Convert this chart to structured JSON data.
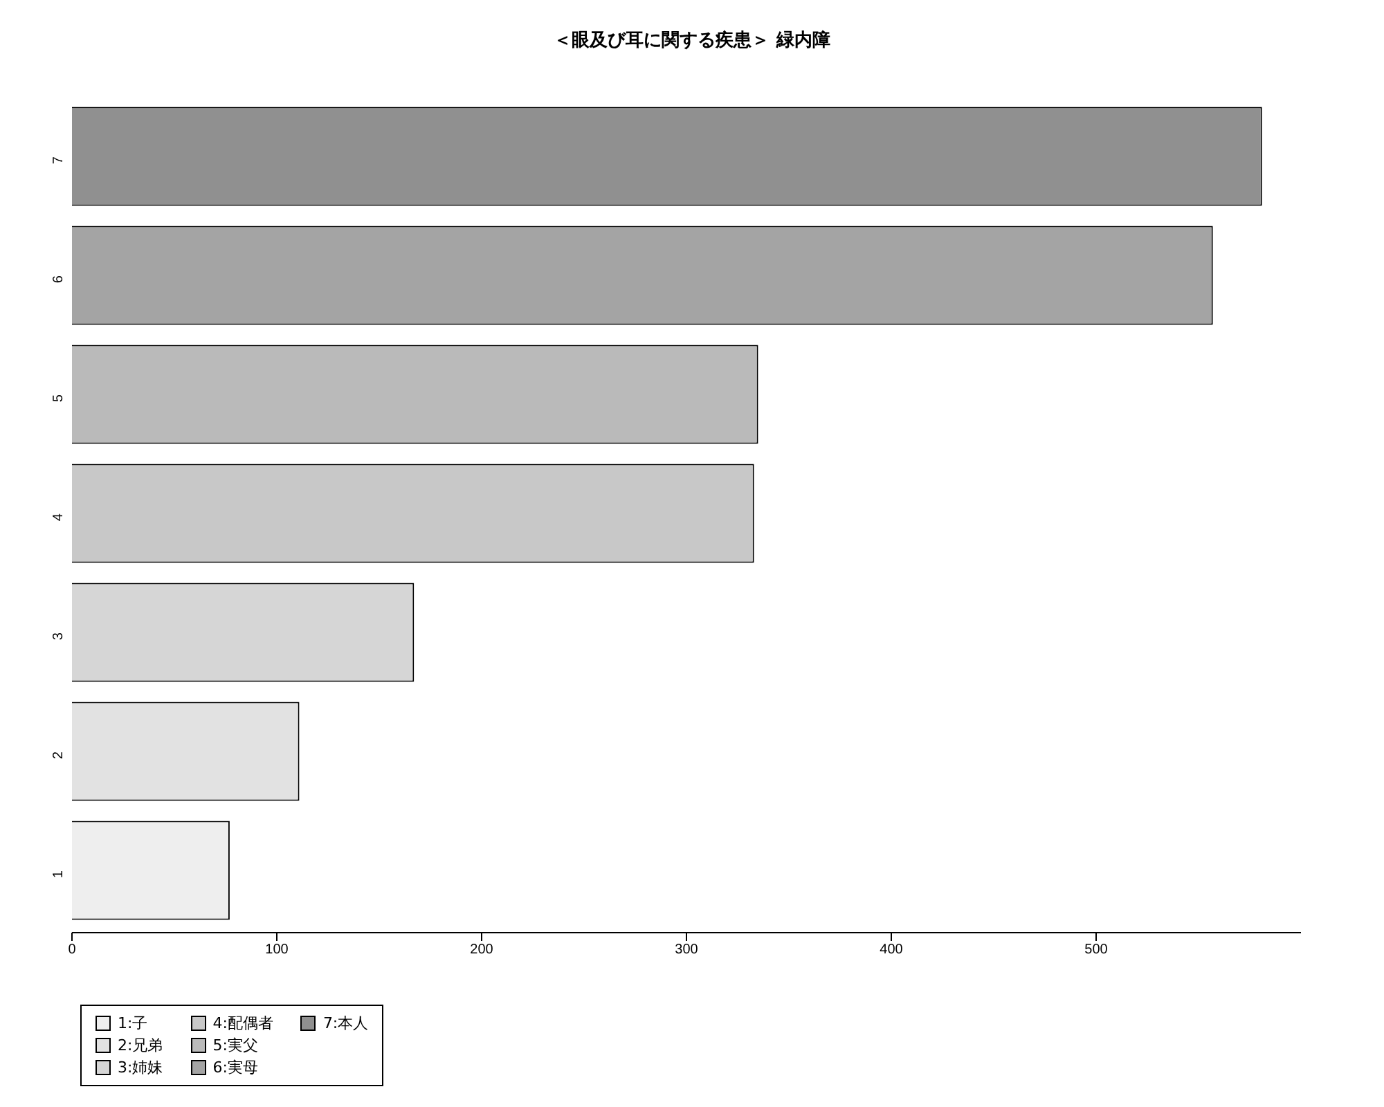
{
  "chart_data": {
    "type": "bar",
    "orientation": "horizontal",
    "stacked": true,
    "title": "＜眼及び耳に関する疾患＞ 緑内障",
    "categories": [
      "7",
      "6",
      "5",
      "4",
      "3",
      "2",
      "1"
    ],
    "series": [
      {
        "name": "1:子",
        "color": "#eeeeee",
        "values": [
          null,
          null,
          null,
          null,
          null,
          null,
          77
        ]
      },
      {
        "name": "2:兄弟",
        "color": "#e2e2e2",
        "values": [
          null,
          null,
          null,
          null,
          null,
          111,
          null
        ]
      },
      {
        "name": "3:姉妹",
        "color": "#d6d6d6",
        "values": [
          null,
          null,
          null,
          null,
          167,
          null,
          null
        ]
      },
      {
        "name": "4:配偶者",
        "color": "#c8c8c8",
        "values": [
          null,
          null,
          null,
          333,
          null,
          null,
          null
        ]
      },
      {
        "name": "5:実父",
        "color": "#bababa",
        "values": [
          null,
          null,
          335,
          null,
          null,
          null,
          null
        ]
      },
      {
        "name": "6:実母",
        "color": "#a4a4a4",
        "values": [
          null,
          557,
          null,
          null,
          null,
          null,
          null
        ]
      },
      {
        "name": "7:本人",
        "color": "#909090",
        "values": [
          581,
          null,
          null,
          null,
          null,
          null,
          null
        ]
      }
    ],
    "xlim": [
      0,
      600
    ],
    "xticks": [
      0,
      100,
      200,
      300,
      400,
      500
    ],
    "grid": false,
    "legend": "bottom left"
  }
}
